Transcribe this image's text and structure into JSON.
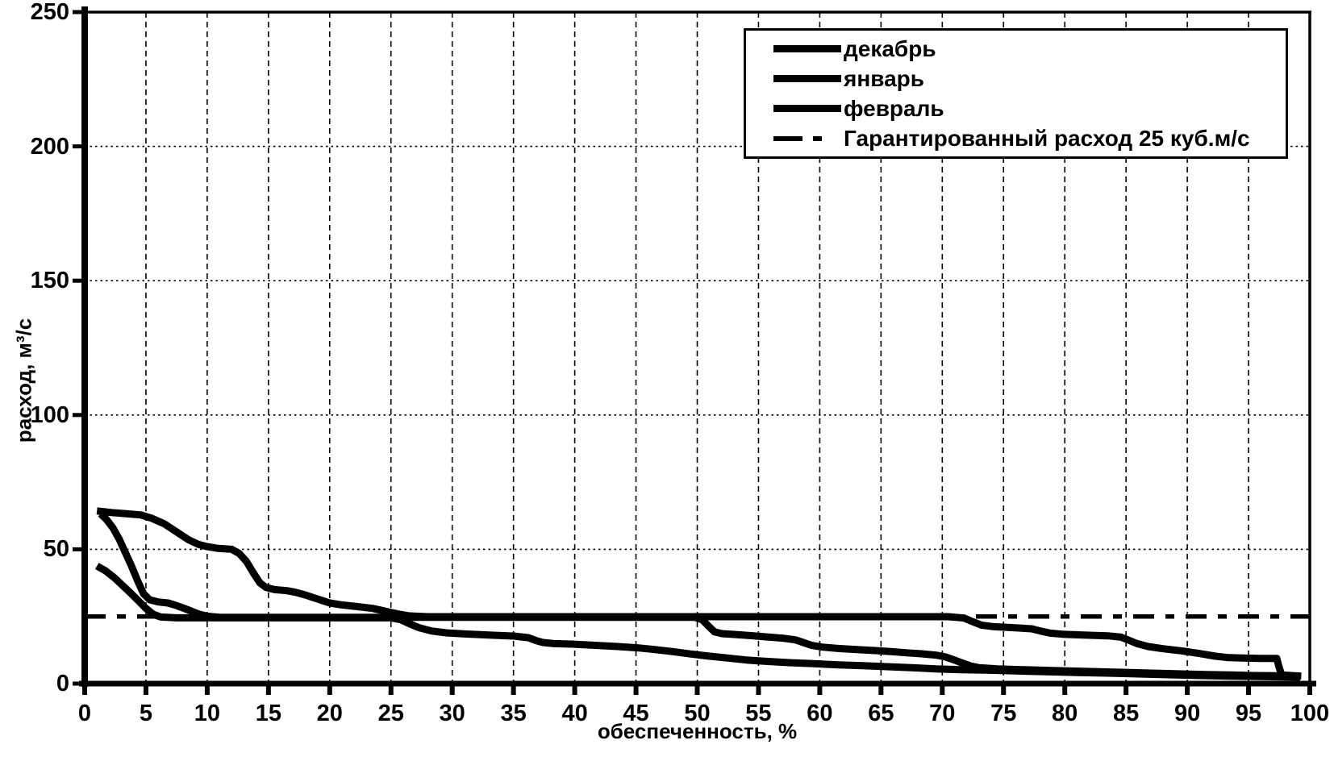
{
  "chart_data": {
    "type": "line",
    "title": "",
    "xlabel": "обеспеченность, %",
    "ylabel": "расход, м³/с",
    "xlim": [
      0,
      100
    ],
    "ylim": [
      0,
      250
    ],
    "x_ticks": [
      0,
      5,
      10,
      15,
      20,
      25,
      30,
      35,
      40,
      45,
      50,
      55,
      60,
      65,
      70,
      75,
      80,
      85,
      90,
      95,
      100
    ],
    "y_ticks": [
      0,
      50,
      100,
      150,
      200,
      250
    ],
    "grid": {
      "vertical": "dashed",
      "horizontal": "dotted"
    },
    "line_color": "#000000",
    "background": "#ffffff",
    "legend_position": "top-right",
    "series": [
      {
        "name": "декабрь",
        "style": "solid",
        "points": [
          [
            1,
            64.3
          ],
          [
            2.2,
            63.7
          ],
          [
            3.5,
            63.2
          ],
          [
            4.6,
            62.8
          ],
          [
            5.5,
            61.5
          ],
          [
            6.5,
            59.5
          ],
          [
            7.5,
            56.5
          ],
          [
            8.5,
            53.5
          ],
          [
            9.3,
            51.8
          ],
          [
            10,
            51
          ],
          [
            10.8,
            50.4
          ],
          [
            12,
            50
          ],
          [
            12.6,
            48.5
          ],
          [
            13.2,
            45.5
          ],
          [
            13.8,
            41
          ],
          [
            14.3,
            37.5
          ],
          [
            14.8,
            35.8
          ],
          [
            15.5,
            35
          ],
          [
            16.5,
            34.6
          ],
          [
            17.2,
            34
          ],
          [
            18,
            33
          ],
          [
            19,
            31.5
          ],
          [
            20,
            30
          ],
          [
            21,
            29.3
          ],
          [
            22.2,
            28.7
          ],
          [
            23.5,
            28
          ],
          [
            24.5,
            27
          ],
          [
            25.5,
            26
          ],
          [
            26.5,
            25.2
          ],
          [
            28,
            24.9
          ],
          [
            70.5,
            24.9
          ],
          [
            71.8,
            24.4
          ],
          [
            72.4,
            23.2
          ],
          [
            73.2,
            21.8
          ],
          [
            74.2,
            21.2
          ],
          [
            75.5,
            20.9
          ],
          [
            77.3,
            20.4
          ],
          [
            78,
            19.6
          ],
          [
            78.8,
            18.8
          ],
          [
            79.8,
            18.4
          ],
          [
            81.5,
            18.1
          ],
          [
            83.5,
            17.8
          ],
          [
            84.6,
            17.3
          ],
          [
            85.2,
            16.2
          ],
          [
            85.9,
            14.9
          ],
          [
            86.8,
            13.8
          ],
          [
            88,
            13
          ],
          [
            89.5,
            12.2
          ],
          [
            91,
            11.2
          ],
          [
            92.3,
            10.2
          ],
          [
            93.3,
            9.7
          ],
          [
            94.5,
            9.5
          ],
          [
            96,
            9.4
          ],
          [
            97.3,
            9.4
          ],
          [
            97.5,
            6
          ],
          [
            97.7,
            3.2
          ],
          [
            98.5,
            3
          ],
          [
            99.3,
            2.8
          ]
        ]
      },
      {
        "name": "январь",
        "style": "solid",
        "points": [
          [
            1.3,
            63.2
          ],
          [
            1.8,
            61
          ],
          [
            2.3,
            58
          ],
          [
            2.8,
            54
          ],
          [
            3.3,
            49
          ],
          [
            3.8,
            44
          ],
          [
            4.3,
            38.5
          ],
          [
            4.8,
            33.5
          ],
          [
            5.3,
            31.2
          ],
          [
            6,
            30.4
          ],
          [
            6.8,
            30
          ],
          [
            7.4,
            29.2
          ],
          [
            8,
            28.2
          ],
          [
            8.7,
            27
          ],
          [
            9.3,
            25.9
          ],
          [
            10,
            25.1
          ],
          [
            11,
            24.7
          ],
          [
            49.8,
            24.7
          ],
          [
            50.4,
            23.8
          ],
          [
            50.9,
            21.5
          ],
          [
            51.4,
            19.3
          ],
          [
            52,
            18.6
          ],
          [
            53,
            18.3
          ],
          [
            54.3,
            17.9
          ],
          [
            55.6,
            17.4
          ],
          [
            57,
            16.9
          ],
          [
            58,
            16.3
          ],
          [
            58.6,
            15.4
          ],
          [
            59.3,
            14.3
          ],
          [
            60.2,
            13.6
          ],
          [
            61.5,
            13.1
          ],
          [
            63,
            12.7
          ],
          [
            64.5,
            12.3
          ],
          [
            65.8,
            11.9
          ],
          [
            67,
            11.5
          ],
          [
            68.3,
            11.1
          ],
          [
            69.5,
            10.6
          ],
          [
            70.2,
            10
          ],
          [
            70.8,
            9.1
          ],
          [
            71.5,
            7.9
          ],
          [
            72.3,
            6.6
          ],
          [
            73,
            5.9
          ],
          [
            74.5,
            5.5
          ],
          [
            76.5,
            5.2
          ],
          [
            79,
            4.9
          ],
          [
            81.5,
            4.6
          ],
          [
            84,
            4.3
          ],
          [
            86.5,
            4
          ],
          [
            89,
            3.7
          ],
          [
            91.5,
            3.4
          ],
          [
            93.5,
            3.2
          ],
          [
            95.5,
            3
          ],
          [
            97.5,
            2.9
          ],
          [
            99.2,
            2.8
          ]
        ]
      },
      {
        "name": "февраль",
        "style": "solid",
        "points": [
          [
            1,
            43.8
          ],
          [
            1.7,
            42
          ],
          [
            2.4,
            39.5
          ],
          [
            3.1,
            36.5
          ],
          [
            3.8,
            33.5
          ],
          [
            4.4,
            30.8
          ],
          [
            5,
            28
          ],
          [
            5.6,
            25.8
          ],
          [
            6.2,
            24.8
          ],
          [
            7.5,
            24.5
          ],
          [
            25,
            24.5
          ],
          [
            25.8,
            23.8
          ],
          [
            26.5,
            22.3
          ],
          [
            27.3,
            20.8
          ],
          [
            28.3,
            19.6
          ],
          [
            29.5,
            18.9
          ],
          [
            31,
            18.5
          ],
          [
            33,
            18.1
          ],
          [
            35,
            17.7
          ],
          [
            36.2,
            17.1
          ],
          [
            36.8,
            16.1
          ],
          [
            37.4,
            15.3
          ],
          [
            38.3,
            14.9
          ],
          [
            39.8,
            14.7
          ],
          [
            41.5,
            14.3
          ],
          [
            43.5,
            13.8
          ],
          [
            45.2,
            13.3
          ],
          [
            46.5,
            12.7
          ],
          [
            48,
            11.9
          ],
          [
            49.5,
            11
          ],
          [
            51,
            10.2
          ],
          [
            52.5,
            9.5
          ],
          [
            54,
            8.8
          ],
          [
            55.5,
            8.3
          ],
          [
            57.5,
            7.8
          ],
          [
            59.5,
            7.4
          ],
          [
            61.5,
            7
          ],
          [
            63.5,
            6.7
          ],
          [
            65.5,
            6.3
          ],
          [
            67.5,
            5.9
          ],
          [
            69.5,
            5.5
          ],
          [
            71.5,
            5.2
          ],
          [
            73.5,
            5
          ],
          [
            76,
            4.7
          ],
          [
            78.5,
            4.4
          ],
          [
            81,
            4.1
          ],
          [
            83.5,
            3.9
          ],
          [
            86,
            3.6
          ],
          [
            88.5,
            3.3
          ],
          [
            91,
            3
          ],
          [
            93.5,
            2.8
          ],
          [
            96,
            2.6
          ],
          [
            98,
            2.5
          ],
          [
            99.2,
            2.4
          ]
        ]
      },
      {
        "name": "Гарантированный расход 25 куб.м/с",
        "style": "dashdot",
        "points": [
          [
            0,
            25
          ],
          [
            100,
            25
          ]
        ]
      }
    ]
  }
}
